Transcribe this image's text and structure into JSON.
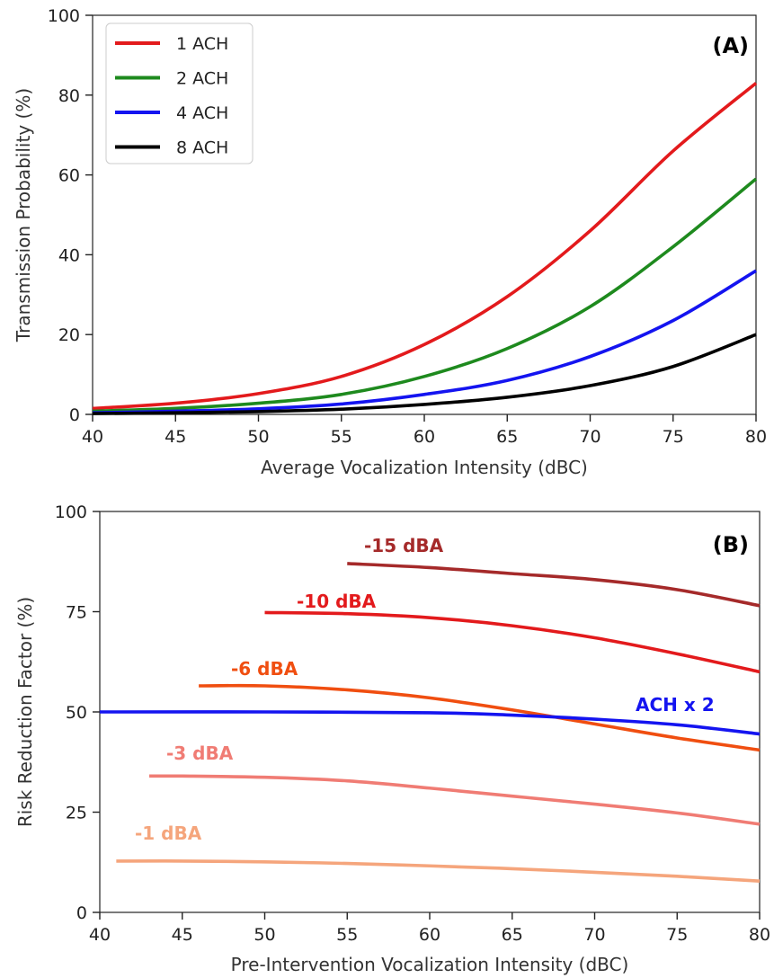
{
  "chart_data": [
    {
      "type": "line",
      "panel_label": "(A)",
      "xlabel": "Average Vocalization Intensity (dBC)",
      "ylabel": "Transmission Probability (%)",
      "xlim": [
        40,
        80
      ],
      "ylim": [
        0,
        100
      ],
      "xticks": [
        40,
        45,
        50,
        55,
        60,
        65,
        70,
        75,
        80
      ],
      "yticks": [
        0,
        20,
        40,
        60,
        80,
        100
      ],
      "grid": false,
      "legend_position": "top-left",
      "x": [
        40,
        45,
        50,
        55,
        60,
        65,
        70,
        75,
        80
      ],
      "series": [
        {
          "name": "1 ACH",
          "color": "#e31a1c",
          "values": [
            1.5,
            2.8,
            5.2,
            9.5,
            17.5,
            29.5,
            46,
            66,
            83
          ]
        },
        {
          "name": "2 ACH",
          "color": "#1e8a1e",
          "values": [
            0.8,
            1.5,
            2.8,
            5.0,
            9.5,
            16.5,
            27,
            42,
            59
          ]
        },
        {
          "name": "4 ACH",
          "color": "#1414f0",
          "values": [
            0.4,
            0.8,
            1.4,
            2.6,
            5.0,
            8.5,
            14.5,
            23.5,
            36
          ]
        },
        {
          "name": "8 ACH",
          "color": "#000000",
          "values": [
            0.2,
            0.4,
            0.7,
            1.3,
            2.5,
            4.3,
            7.2,
            12,
            20
          ]
        }
      ]
    },
    {
      "type": "line",
      "panel_label": "(B)",
      "xlabel": "Pre-Intervention Vocalization Intensity (dBC)",
      "ylabel": "Risk Reduction Factor (%)",
      "xlim": [
        40,
        80
      ],
      "ylim": [
        0,
        100
      ],
      "xticks": [
        40,
        45,
        50,
        55,
        60,
        65,
        70,
        75,
        80
      ],
      "yticks": [
        0,
        25,
        50,
        75,
        100
      ],
      "grid": false,
      "series": [
        {
          "name": "-15 dBA",
          "color": "#a52a2a",
          "x": [
            55,
            60,
            65,
            70,
            75,
            80
          ],
          "values": [
            87,
            86,
            84.5,
            83,
            80.5,
            76.5
          ]
        },
        {
          "name": "-10 dBA",
          "color": "#e31a1c",
          "x": [
            50,
            55,
            60,
            65,
            70,
            75,
            80
          ],
          "values": [
            74.8,
            74.5,
            73.5,
            71.5,
            68.5,
            64.5,
            60
          ]
        },
        {
          "name": "-6 dBA",
          "color": "#f04e10",
          "x": [
            46,
            50,
            55,
            60,
            65,
            70,
            75,
            80
          ],
          "values": [
            56.5,
            56.5,
            55.5,
            53.5,
            50.5,
            47,
            43.5,
            40.5
          ]
        },
        {
          "name": "ACH x 2",
          "color": "#1414f0",
          "x": [
            40,
            50,
            60,
            65,
            70,
            75,
            80
          ],
          "values": [
            50,
            50,
            49.8,
            49.2,
            48.2,
            46.8,
            44.5
          ]
        },
        {
          "name": "-3 dBA",
          "color": "#f07c74",
          "x": [
            43,
            45,
            50,
            55,
            60,
            65,
            70,
            75,
            80
          ],
          "values": [
            34,
            34,
            33.7,
            32.8,
            31,
            29,
            27,
            24.8,
            22
          ]
        },
        {
          "name": "-1 dBA",
          "color": "#f5a57c",
          "x": [
            41,
            45,
            50,
            55,
            60,
            65,
            70,
            75,
            80
          ],
          "values": [
            12.8,
            12.8,
            12.6,
            12.2,
            11.6,
            10.9,
            10,
            9,
            7.8
          ]
        }
      ]
    }
  ]
}
